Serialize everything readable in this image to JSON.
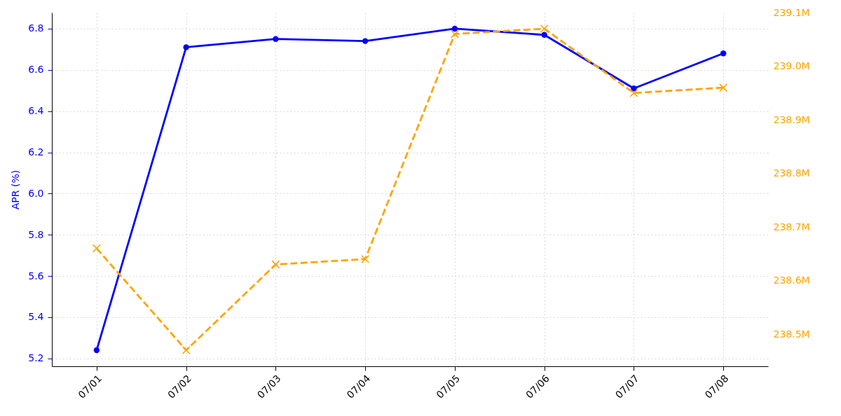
{
  "chart_data": {
    "type": "line",
    "categories": [
      "07/01",
      "07/02",
      "07/03",
      "07/04",
      "07/05",
      "07/06",
      "07/07",
      "07/08"
    ],
    "ylabel": "APR (%)",
    "series": [
      {
        "color": "#0000ff",
        "marker": "circle",
        "line_style": "solid",
        "values": [
          5.24,
          6.71,
          6.75,
          6.74,
          6.8,
          6.77,
          6.51,
          6.68
        ]
      },
      {
        "color": "#ffa500",
        "marker": "cross",
        "line_style": "dashed",
        "axis": "y2",
        "values": [
          238.66,
          238.47,
          238.63,
          238.64,
          239.06,
          239.07,
          238.95,
          238.96
        ]
      }
    ],
    "ylim": [
      5.162,
      6.878
    ],
    "yticks": [
      5.2,
      5.4,
      5.6,
      5.8,
      {
        "value": 6.0,
        "label": "6.0"
      },
      6.2,
      6.4,
      6.6,
      6.8
    ],
    "y2lim": [
      238.44,
      239.1
    ],
    "y2ticks": [
      {
        "value": 238.5,
        "label": "238.5M"
      },
      {
        "value": 238.6,
        "label": "238.6M"
      },
      {
        "value": 238.7,
        "label": "238.7M"
      },
      {
        "value": 238.8,
        "label": "238.8M"
      },
      {
        "value": 238.9,
        "label": "238.9M"
      },
      {
        "value": 239.0,
        "label": "239.0M"
      },
      {
        "value": 239.1,
        "label": "239.1M"
      }
    ],
    "grid": true
  }
}
